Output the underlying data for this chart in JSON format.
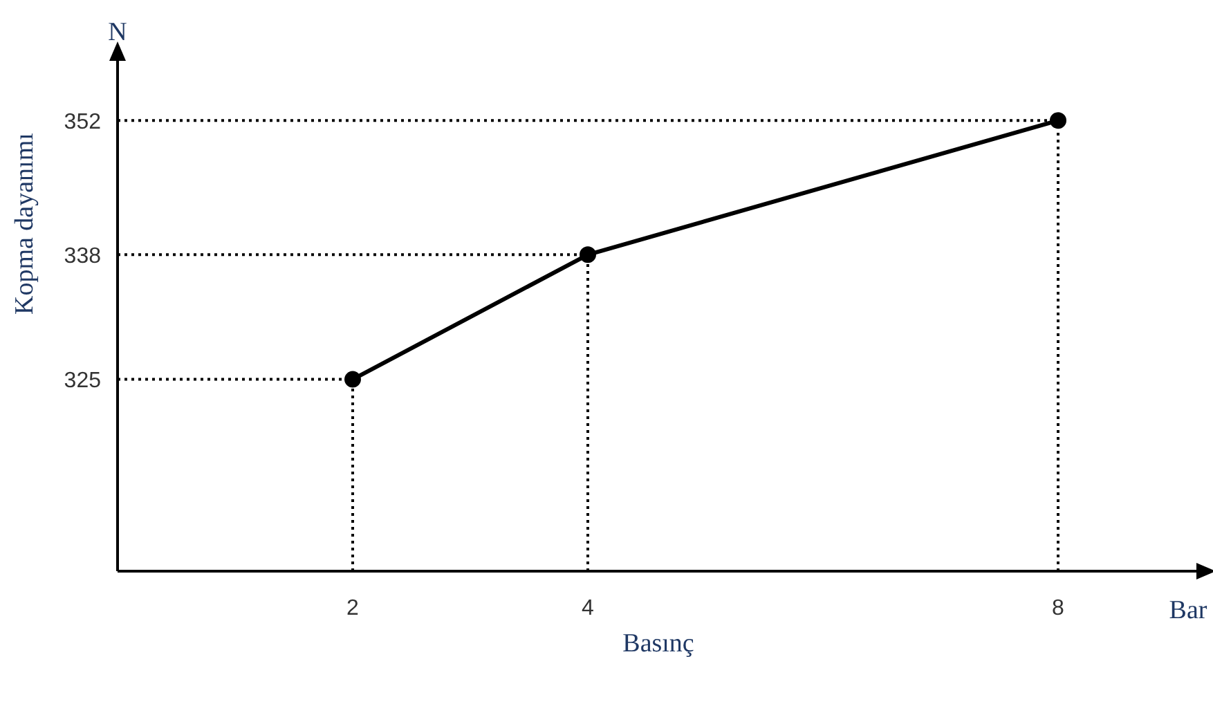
{
  "chart_data": {
    "type": "line",
    "xlabel": "Basınç",
    "ylabel": "Kopma dayanımı",
    "annotations": [
      "N",
      "Bar"
    ],
    "x": [
      2,
      4,
      8
    ],
    "series": [
      {
        "color": "#000000",
        "values": [
          325,
          338,
          352
        ]
      }
    ],
    "xlim": [
      0,
      9.2
    ],
    "ylim": [
      305,
      358.5
    ],
    "xticks": [
      2,
      4,
      8
    ],
    "yticks": [
      325,
      338,
      352
    ],
    "marker": "circle",
    "line_style": "solid",
    "ref_lines": [
      {
        "axis": "y",
        "value": 352,
        "line_style": "dotted",
        "color": "#000000"
      },
      {
        "axis": "y",
        "value": 338,
        "line_style": "dotted",
        "color": "#000000"
      },
      {
        "axis": "y",
        "value": 325,
        "line_style": "dotted",
        "color": "#000000"
      },
      {
        "axis": "x",
        "value": 2,
        "line_style": "dotted",
        "color": "#000000"
      },
      {
        "axis": "x",
        "value": 4,
        "line_style": "dotted",
        "color": "#000000"
      },
      {
        "axis": "x",
        "value": 8,
        "line_style": "dotted",
        "color": "#000000"
      }
    ]
  }
}
